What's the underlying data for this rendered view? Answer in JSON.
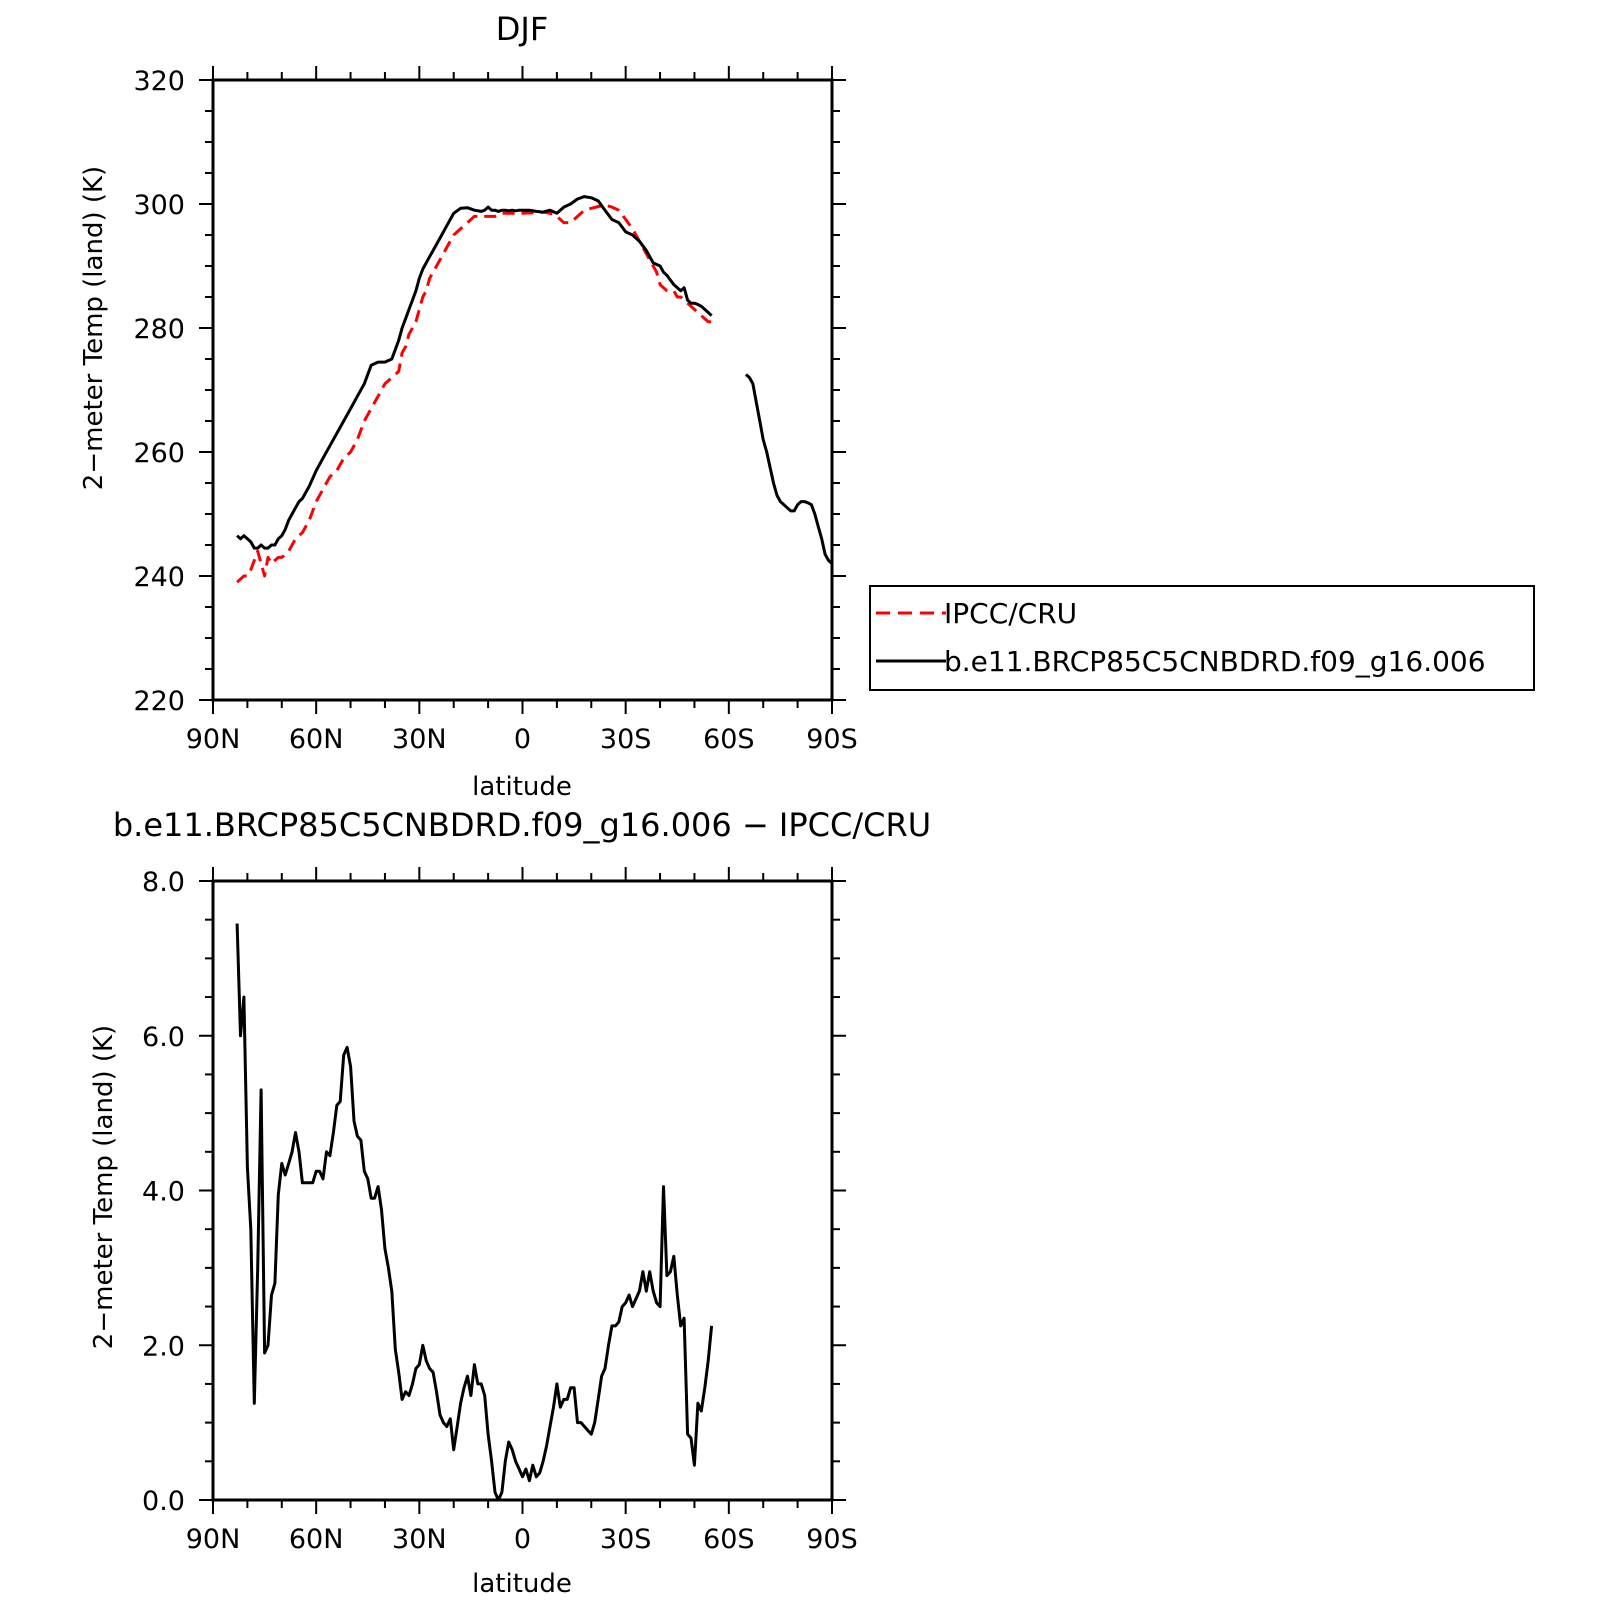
{
  "figure": {
    "top_title": "DJF",
    "bottom_title": "b.e11.BRCP85C5CNBDRD.f09_g16.006 − IPCC/CRU"
  },
  "legend": {
    "items": [
      {
        "label": "IPCC/CRU",
        "color": "#ff0000",
        "dash": true
      },
      {
        "label": "b.e11.BRCP85C5CNBDRD.f09_g16.006",
        "color": "#000000",
        "dash": false
      }
    ]
  },
  "chart_data": [
    {
      "type": "line",
      "title": "DJF",
      "xlabel": "latitude",
      "ylabel": "2−meter Temp (land) (K)",
      "xlim": [
        90,
        -90
      ],
      "ylim": [
        220,
        320
      ],
      "xticks": [
        90,
        60,
        30,
        0,
        -30,
        -60,
        -90
      ],
      "xticklabels": [
        "90N",
        "60N",
        "30N",
        "0",
        "30S",
        "60S",
        "90S"
      ],
      "yticks": [
        220,
        240,
        260,
        280,
        300,
        320
      ],
      "yticklabels": [
        "220",
        "240",
        "260",
        "280",
        "300",
        "320"
      ],
      "grid": false,
      "legend_position": "right, outside plot",
      "series": [
        {
          "name": "IPCC/CRU",
          "color": "#ff0000",
          "dash": true,
          "x": [
            83,
            81,
            80,
            79,
            77,
            76,
            75,
            74,
            73,
            71,
            70,
            68,
            66,
            64,
            62,
            60,
            58,
            56,
            54,
            52,
            50,
            48,
            46,
            44,
            42,
            40,
            38,
            36,
            35,
            34,
            33,
            32,
            31,
            30,
            29,
            28,
            27,
            26,
            24,
            22,
            20,
            18,
            16,
            14,
            12,
            10,
            8,
            6,
            4,
            2,
            0,
            -2,
            -4,
            -6,
            -8,
            -10,
            -12,
            -14,
            -16,
            -18,
            -20,
            -22,
            -24,
            -26,
            -28,
            -30,
            -32,
            -34,
            -36,
            -38,
            -39,
            -40,
            -42,
            -44,
            -45,
            -46,
            -48,
            -50,
            -52,
            -54,
            -55
          ],
          "y": [
            239,
            240,
            240,
            241,
            244,
            242,
            240,
            243,
            242,
            243,
            243,
            244,
            246,
            247,
            249,
            252,
            254,
            256,
            257,
            259,
            260,
            262,
            265,
            267,
            269,
            271,
            272,
            273,
            276,
            277,
            279,
            280,
            281,
            283,
            285,
            286,
            288,
            289,
            291,
            293,
            295,
            296,
            297,
            298,
            298,
            298,
            298,
            298.5,
            298.5,
            298.5,
            298.5,
            298.6,
            298.5,
            298.7,
            298.5,
            298,
            297,
            297,
            298,
            299,
            299.3,
            299.6,
            299.8,
            299.5,
            299,
            297.5,
            296,
            294,
            292,
            290,
            289,
            287,
            286,
            286,
            285,
            285,
            284,
            283,
            282,
            281,
            281
          ]
        },
        {
          "name": "b.e11.BRCP85C5CNBDRD.f09_g16.006",
          "color": "#000000",
          "dash": false,
          "x": [
            83,
            82,
            81,
            80,
            79,
            78,
            77,
            76,
            75,
            74,
            73,
            72,
            71,
            70,
            69,
            68,
            67,
            66,
            65,
            64,
            62,
            60,
            58,
            56,
            54,
            52,
            50,
            48,
            46,
            44,
            42,
            40,
            38,
            36,
            35,
            34,
            33,
            32,
            31,
            30,
            29,
            28,
            27,
            26,
            24,
            22,
            20,
            18,
            16,
            14,
            12,
            11,
            10,
            9,
            8,
            7,
            6,
            5,
            4,
            3,
            2,
            1,
            0,
            -2,
            -4,
            -6,
            -8,
            -10,
            -12,
            -14,
            -16,
            -18,
            -20,
            -22,
            -24,
            -26,
            -28,
            -30,
            -32,
            -34,
            -36,
            -38,
            -40,
            -41,
            -42,
            -44,
            -46,
            -47,
            -48,
            -49,
            -50,
            -51,
            -52,
            -53,
            -54,
            -55,
            null,
            -65,
            -66,
            -67,
            -68,
            -69,
            -70,
            -71,
            -72,
            -73,
            -74,
            -75,
            -76,
            -77,
            -78,
            -79,
            -80,
            -81,
            -82,
            -83,
            -84,
            -85,
            -86,
            -87,
            -88,
            -89,
            -90
          ],
          "y": [
            246.5,
            246,
            246.5,
            246,
            245.5,
            244.5,
            244.5,
            245,
            244.5,
            244.5,
            245,
            245,
            246,
            246.5,
            247.5,
            249,
            250,
            251,
            252,
            252.5,
            254.5,
            257,
            259,
            261,
            263,
            265,
            267,
            269,
            271,
            274,
            274.5,
            274.5,
            275,
            278,
            280,
            281.5,
            283,
            284.5,
            286,
            288,
            289.5,
            290.5,
            291.5,
            292.5,
            294.5,
            296.5,
            298.5,
            299.3,
            299.4,
            299,
            298.8,
            299,
            299.5,
            299,
            299,
            298.8,
            299,
            299,
            298.9,
            299,
            298.9,
            299,
            299,
            299,
            298.8,
            298.7,
            299,
            298.5,
            299.5,
            300,
            300.8,
            301.2,
            301,
            300.5,
            299,
            297.5,
            297,
            295.5,
            295,
            294,
            292.5,
            290.5,
            290,
            289,
            288.5,
            287,
            286,
            286.5,
            284.5,
            284,
            284,
            283.8,
            283.5,
            283,
            282.5,
            282,
            null,
            272.5,
            272,
            271,
            268,
            265,
            262,
            260,
            257.5,
            255,
            253,
            252,
            251.5,
            251,
            250.5,
            250.5,
            251.5,
            252,
            252,
            251.8,
            251.5,
            250,
            248,
            246,
            243.5,
            242.5,
            242
          ]
        }
      ]
    },
    {
      "type": "line",
      "title": "b.e11.BRCP85C5CNBDRD.f09_g16.006 − IPCC/CRU",
      "xlabel": "latitude",
      "ylabel": "2−meter Temp (land) (K)",
      "xlim": [
        90,
        -90
      ],
      "ylim": [
        0,
        8
      ],
      "xticks": [
        90,
        60,
        30,
        0,
        -30,
        -60,
        -90
      ],
      "xticklabels": [
        "90N",
        "60N",
        "30N",
        "0",
        "30S",
        "60S",
        "90S"
      ],
      "yticks": [
        0,
        2,
        4,
        6,
        8
      ],
      "yticklabels": [
        "0.0",
        "2.0",
        "4.0",
        "6.0",
        "8.0"
      ],
      "grid": false,
      "series": [
        {
          "color": "#000000",
          "x": [
            83,
            82,
            81,
            80,
            79,
            78,
            77,
            76,
            75,
            74,
            73,
            72,
            71,
            70,
            69,
            68,
            67,
            66,
            65,
            64,
            63,
            62,
            61,
            60,
            59,
            58,
            57,
            56,
            55,
            54,
            53,
            52,
            51,
            50,
            49,
            48,
            47,
            46,
            45,
            44,
            43,
            42,
            41,
            40,
            39,
            38,
            37,
            36,
            35,
            34,
            33,
            32,
            31,
            30,
            29,
            28,
            27,
            26,
            25,
            24,
            23,
            22,
            21,
            20,
            19,
            18,
            17,
            16,
            15,
            14,
            13,
            12,
            11,
            10,
            9,
            8,
            7,
            6,
            5,
            4,
            3,
            2,
            1,
            0,
            -1,
            -2,
            -3,
            -4,
            -5,
            -6,
            -7,
            -8,
            -9,
            -10,
            -11,
            -12,
            -13,
            -14,
            -15,
            -16,
            -17,
            -18,
            -19,
            -20,
            -21,
            -22,
            -23,
            -24,
            -25,
            -26,
            -27,
            -28,
            -29,
            -30,
            -31,
            -32,
            -33,
            -34,
            -35,
            -36,
            -37,
            -38,
            -39,
            -40,
            -41,
            -42,
            -43,
            -44,
            -45,
            -46,
            -47,
            -48,
            -49,
            -50,
            -51,
            -52,
            -53,
            -54,
            -55
          ],
          "y": [
            7.45,
            6.0,
            6.5,
            4.3,
            3.5,
            1.25,
            3.0,
            5.3,
            1.9,
            2.0,
            2.65,
            2.8,
            3.95,
            4.35,
            4.2,
            4.35,
            4.5,
            4.75,
            4.5,
            4.1,
            4.1,
            4.1,
            4.1,
            4.25,
            4.25,
            4.15,
            4.5,
            4.45,
            4.75,
            5.1,
            5.15,
            5.75,
            5.85,
            5.6,
            4.9,
            4.7,
            4.65,
            4.25,
            4.15,
            3.9,
            3.9,
            4.05,
            3.75,
            3.25,
            3.0,
            2.7,
            1.95,
            1.65,
            1.3,
            1.4,
            1.35,
            1.5,
            1.7,
            1.75,
            2.0,
            1.8,
            1.7,
            1.65,
            1.4,
            1.1,
            1.0,
            0.95,
            1.05,
            0.65,
            0.95,
            1.25,
            1.45,
            1.6,
            1.35,
            1.75,
            1.5,
            1.5,
            1.35,
            0.85,
            0.5,
            0.1,
            0.0,
            0.1,
            0.5,
            0.75,
            0.65,
            0.5,
            0.4,
            0.3,
            0.4,
            0.25,
            0.45,
            0.3,
            0.35,
            0.5,
            0.7,
            0.95,
            1.2,
            1.5,
            1.2,
            1.3,
            1.3,
            1.45,
            1.45,
            1.0,
            1.0,
            0.95,
            0.9,
            0.85,
            1.0,
            1.3,
            1.6,
            1.7,
            2.0,
            2.25,
            2.25,
            2.3,
            2.5,
            2.55,
            2.65,
            2.5,
            2.6,
            2.7,
            2.95,
            2.7,
            2.95,
            2.7,
            2.55,
            2.5,
            4.05,
            2.9,
            2.95,
            3.15,
            2.65,
            2.25,
            2.35,
            0.85,
            0.8,
            0.45,
            1.25,
            1.15,
            1.45,
            1.8,
            2.25
          ]
        }
      ]
    }
  ]
}
